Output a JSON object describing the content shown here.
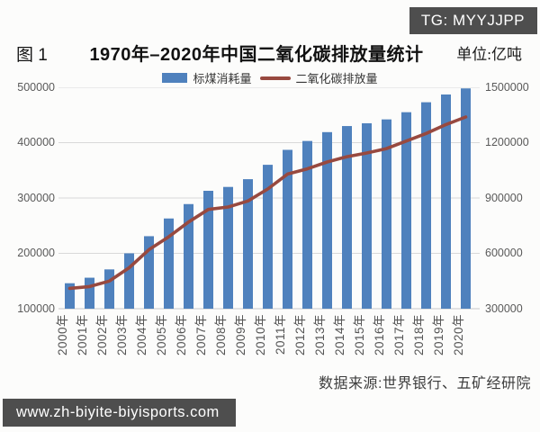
{
  "badge": {
    "text": "TG: MYYJJPP"
  },
  "header": {
    "figure_label": "图 1",
    "title": "1970年–2020年中国二氧化碳排放量统计",
    "unit_label": "单位:亿吨"
  },
  "legend": [
    {
      "label": "标煤消耗量",
      "type": "bar",
      "color": "#4f81bd"
    },
    {
      "label": "二氧化碳排放量",
      "type": "line",
      "color": "#98493f"
    }
  ],
  "source_note": "数据来源:世界银行、五矿经研院",
  "watermark": "www.zh-biyite-biyisports.com",
  "chart_data": {
    "type": "bar+line combo",
    "title": "1970年–2020年中国二氧化碳排放量统计",
    "unit": "亿吨",
    "categories": [
      "2000年",
      "2001年",
      "2002年",
      "2003年",
      "2004年",
      "2005年",
      "2006年",
      "2007年",
      "2008年",
      "2009年",
      "2010年",
      "2011年",
      "2012年",
      "2013年",
      "2014年",
      "2015年",
      "2016年",
      "2017年",
      "2018年",
      "2019年",
      "2020年"
    ],
    "series": [
      {
        "name": "标煤消耗量",
        "type": "bar",
        "axis": "left",
        "color": "#4f81bd",
        "values": [
          146000,
          156000,
          171000,
          200000,
          231000,
          263000,
          289000,
          313000,
          320000,
          334000,
          360000,
          387000,
          403000,
          419000,
          430000,
          435000,
          442000,
          455000,
          473000,
          487000,
          498000
        ]
      },
      {
        "name": "二氧化碳排放量",
        "type": "line",
        "axis": "right",
        "color": "#98493f",
        "values": [
          410000,
          420000,
          450000,
          522000,
          620000,
          690000,
          770000,
          838000,
          851000,
          884000,
          949000,
          1030000,
          1058000,
          1095000,
          1124000,
          1144000,
          1168000,
          1209000,
          1250000,
          1298000,
          1339000
        ]
      }
    ],
    "left_axis": {
      "min": 100000,
      "max": 500000,
      "ticks": [
        500000,
        400000,
        300000,
        200000,
        100000
      ]
    },
    "right_axis": {
      "min": 300000,
      "max": 1500000,
      "ticks": [
        1500000,
        1200000,
        900000,
        600000,
        300000
      ]
    },
    "grid": true,
    "legend_position": "top",
    "gridline_color": "#d9d9d9"
  }
}
